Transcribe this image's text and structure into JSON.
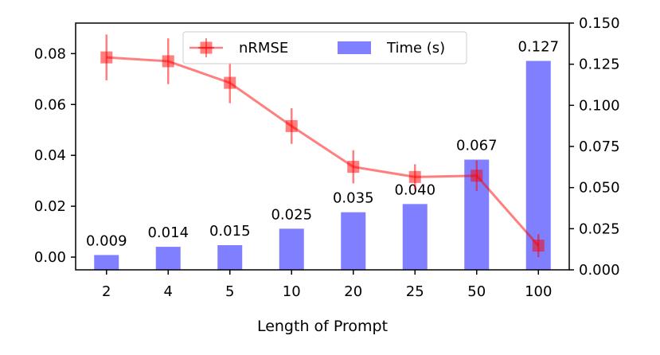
{
  "chart_data": {
    "type": "bar+line",
    "title": "",
    "xlabel": "Length of Prompt",
    "categories": [
      "2",
      "4",
      "5",
      "10",
      "20",
      "25",
      "50",
      "100"
    ],
    "y_left": {
      "ylim": [
        -0.005,
        0.092
      ],
      "ticks": [
        0.0,
        0.02,
        0.04,
        0.06,
        0.08
      ],
      "tick_labels": [
        "0.00",
        "0.02",
        "0.04",
        "0.06",
        "0.08"
      ]
    },
    "y_right": {
      "ylim": [
        0.0,
        0.15
      ],
      "ticks": [
        0.0,
        0.025,
        0.05,
        0.075,
        0.1,
        0.125,
        0.15
      ],
      "tick_labels": [
        "0.000",
        "0.025",
        "0.050",
        "0.075",
        "0.100",
        "0.125",
        "0.150"
      ]
    },
    "series": [
      {
        "name": "nRMSE",
        "kind": "line",
        "axis": "left",
        "color": "#ff0000",
        "values": [
          0.0785,
          0.077,
          0.0685,
          0.0515,
          0.0355,
          0.0315,
          0.032,
          0.0045
        ],
        "errors": [
          0.009,
          0.009,
          0.008,
          0.007,
          0.0065,
          0.005,
          0.006,
          0.0045
        ]
      },
      {
        "name": "Time (s)",
        "kind": "bar",
        "axis": "right",
        "color": "#0000ff",
        "values": [
          0.009,
          0.014,
          0.015,
          0.025,
          0.035,
          0.04,
          0.067,
          0.127
        ],
        "labels": [
          "0.009",
          "0.014",
          "0.015",
          "0.025",
          "0.035",
          "0.040",
          "0.067",
          "0.127"
        ]
      }
    ],
    "legend": {
      "position": "top-center",
      "entries": [
        "nRMSE",
        "Time (s)"
      ]
    },
    "grid": false
  }
}
